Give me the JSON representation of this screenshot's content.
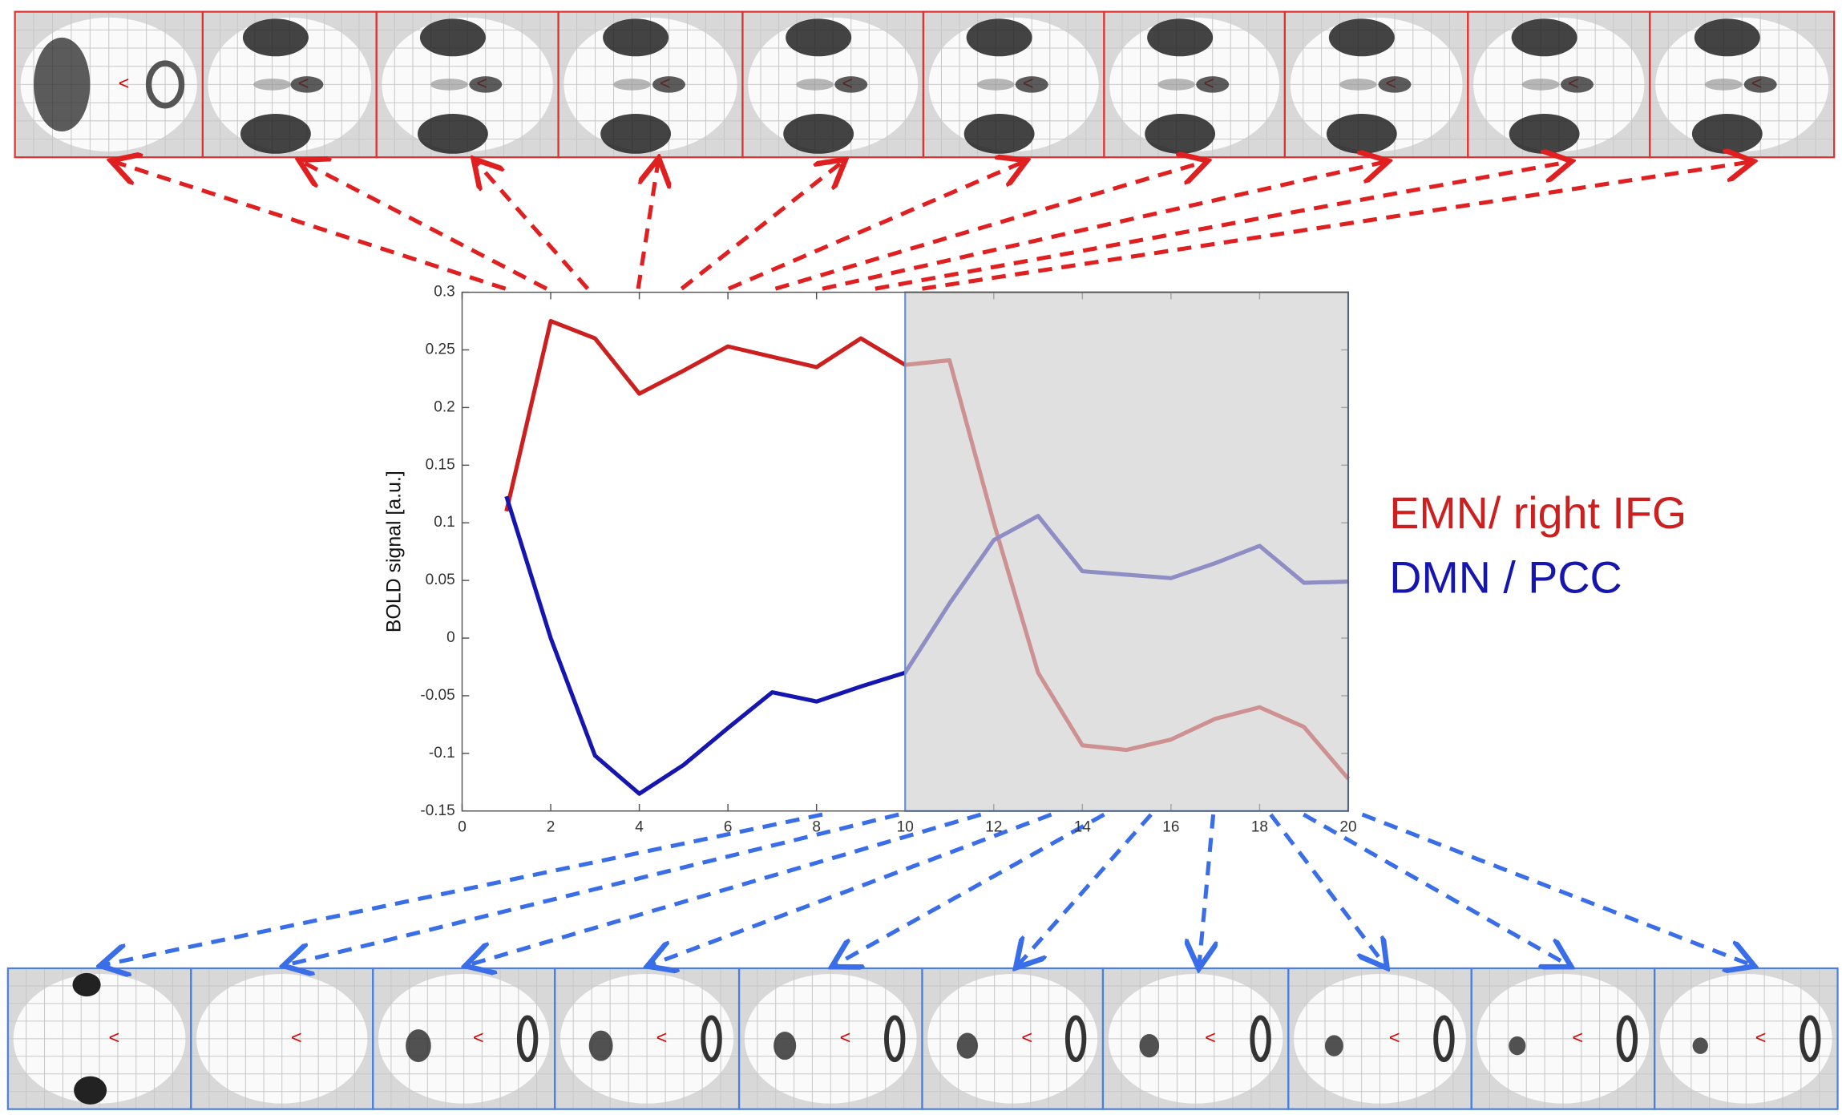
{
  "chart_data": {
    "type": "line",
    "ylabel": "BOLD signal [a.u.]",
    "x": [
      1,
      2,
      3,
      4,
      5,
      6,
      7,
      8,
      9,
      10,
      11,
      12,
      13,
      14,
      15,
      16,
      17,
      18,
      19,
      20
    ],
    "series": [
      {
        "name": "EMN/ right IFG",
        "color": "#cc1f1f",
        "values": [
          0.11,
          0.275,
          0.26,
          0.212,
          0.232,
          0.253,
          0.244,
          0.235,
          0.26,
          0.237,
          0.241,
          0.1,
          -0.03,
          -0.093,
          -0.097,
          -0.088,
          -0.07,
          -0.06,
          -0.077,
          -0.122
        ]
      },
      {
        "name": "DMN / PCC",
        "color": "#1515b0",
        "values": [
          0.123,
          0.0,
          -0.102,
          -0.135,
          -0.11,
          -0.078,
          -0.047,
          -0.055,
          -0.042,
          -0.03,
          0.03,
          0.085,
          0.106,
          0.058,
          0.055,
          0.052,
          0.065,
          0.08,
          0.048,
          0.049
        ]
      }
    ],
    "xlim": [
      0,
      20
    ],
    "xticks": [
      0,
      2,
      4,
      6,
      8,
      10,
      12,
      14,
      16,
      18,
      20
    ],
    "ylim": [
      -0.15,
      0.3
    ],
    "yticks": [
      -0.15,
      -0.1,
      -0.05,
      0,
      0.05,
      0.1,
      0.15,
      0.2,
      0.25,
      0.3
    ],
    "shaded_xrange": [
      10,
      20
    ],
    "shade_color": "#cfcfcf"
  }
}
